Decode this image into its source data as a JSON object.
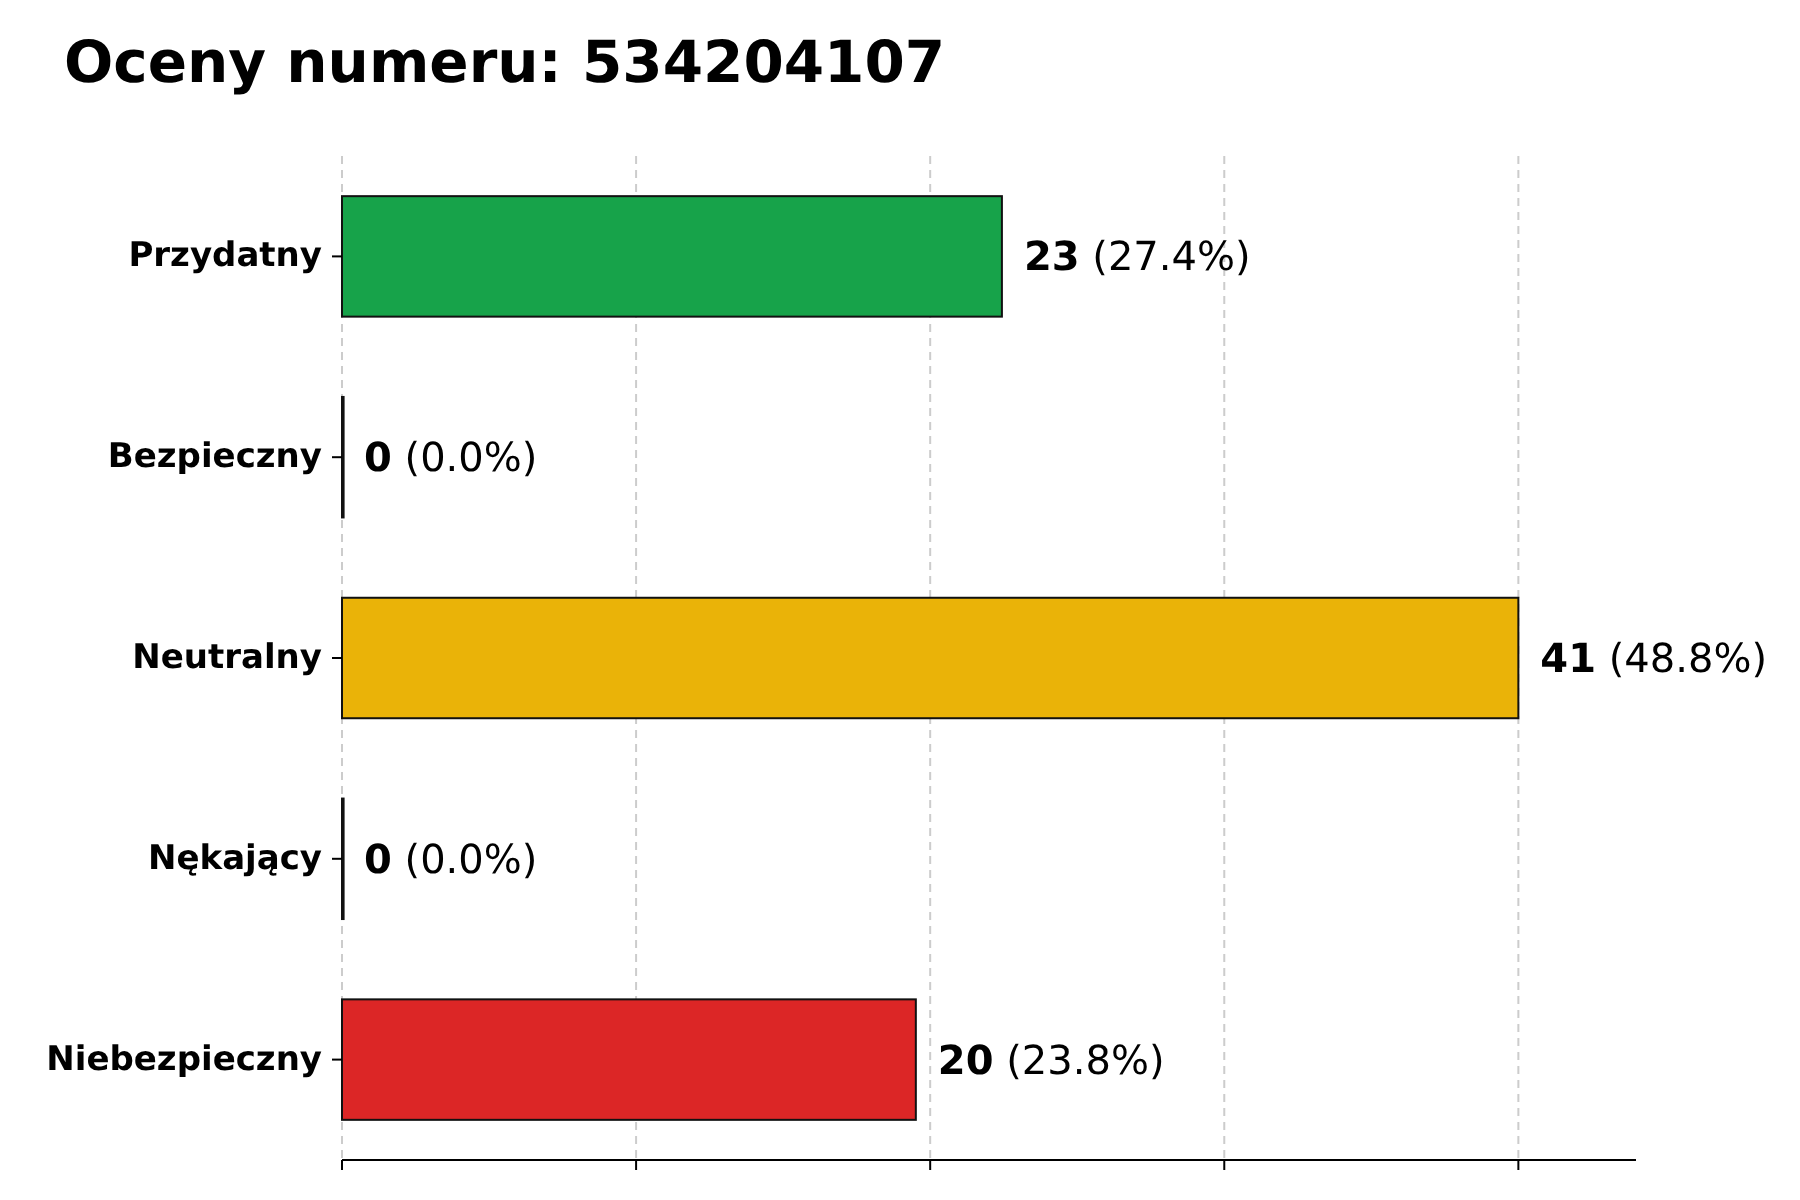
{
  "chart_data": {
    "type": "bar",
    "orientation": "horizontal",
    "title": "Oceny numeru: 534204107",
    "categories": [
      "Przydatny",
      "Bezpieczny",
      "Neutralny",
      "Nękający",
      "Niebezpieczny"
    ],
    "values": [
      23,
      0,
      41,
      0,
      20
    ],
    "colors": [
      "#17a34a",
      "#6b7280",
      "#eab308",
      "#6b7280",
      "#dc2626"
    ],
    "value_labels": [
      "23 (27.4%)",
      "0 (0.0%)",
      "41 (48.8%)",
      "0 (0.0%)",
      "20 (23.8%)"
    ],
    "xlim": [
      0,
      45.1
    ],
    "xticks": [
      {
        "value": 0,
        "label": null
      },
      {
        "value": 10.25,
        "label": null
      },
      {
        "value": 20.5,
        "label": null
      },
      {
        "value": 30.75,
        "label": null
      },
      {
        "value": 41,
        "label": null
      }
    ],
    "tick_labels": "y",
    "grid": "x"
  }
}
